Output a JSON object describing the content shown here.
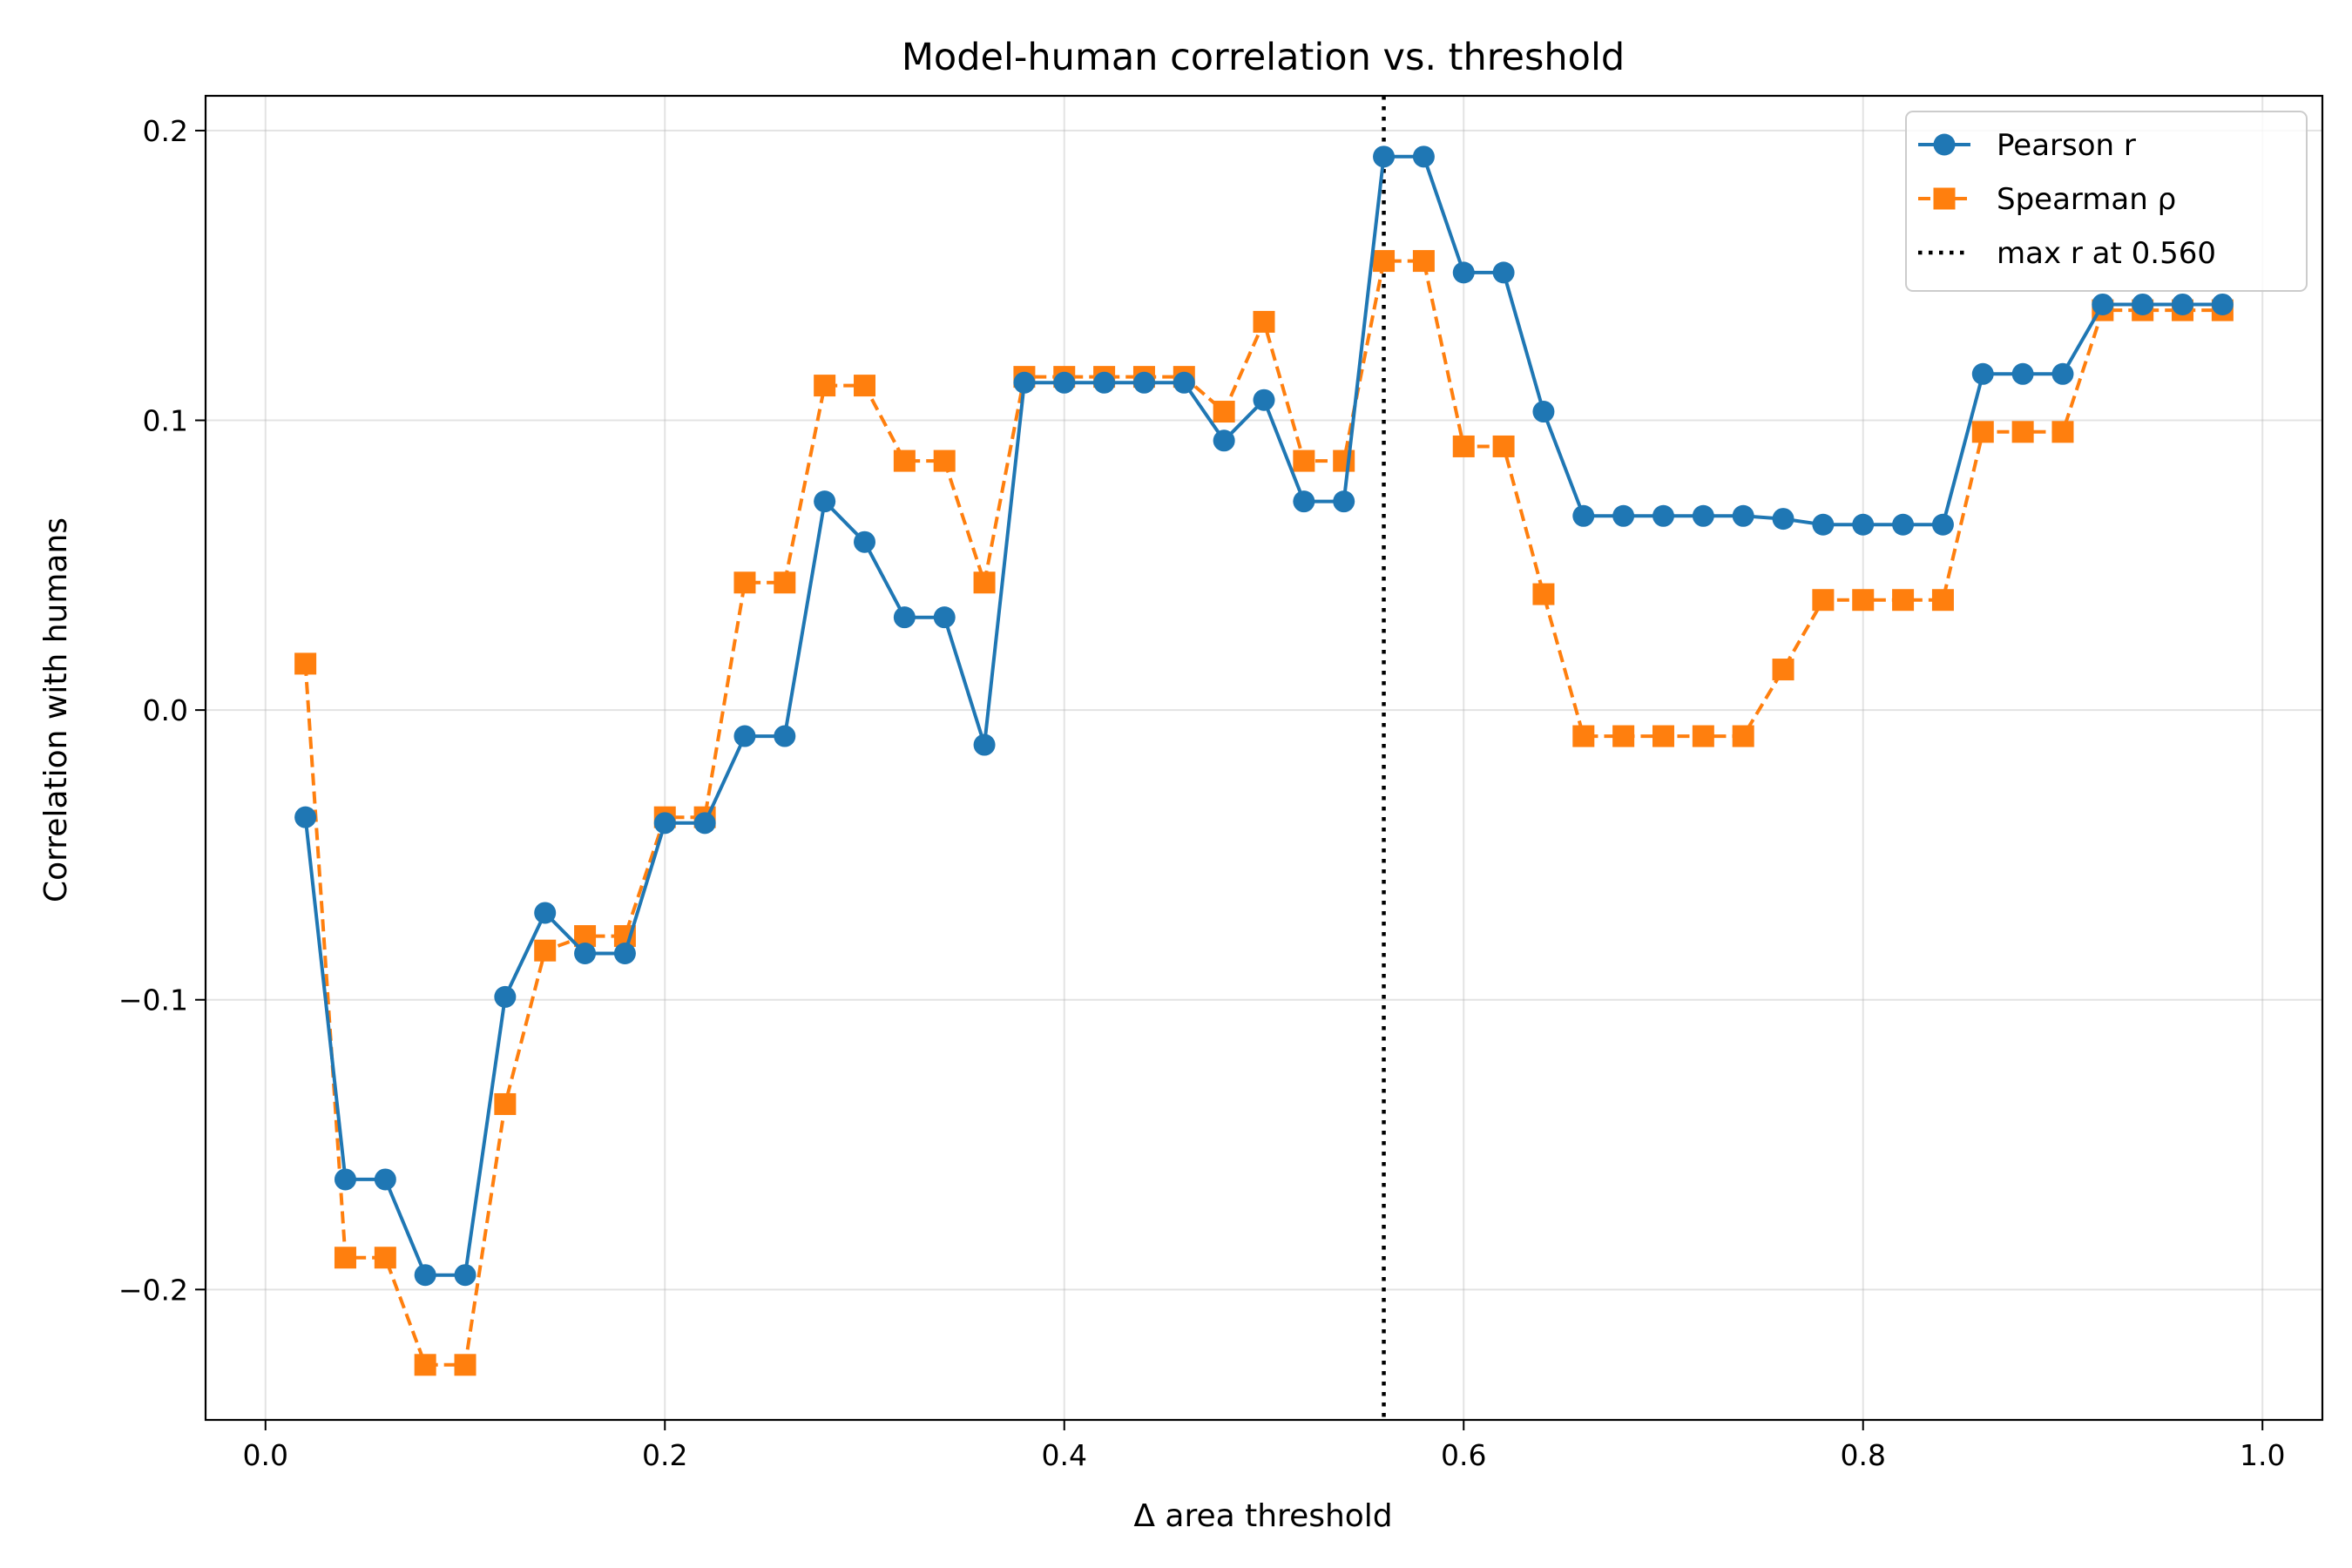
{
  "chart_data": {
    "type": "line",
    "title": "Model-human correlation vs. threshold",
    "xlabel": "Δ area threshold",
    "ylabel": "Correlation with humans",
    "xlim": [
      -0.03,
      1.03
    ],
    "ylim": [
      -0.245,
      0.212
    ],
    "xticks": [
      0.0,
      0.2,
      0.4,
      0.6,
      0.8,
      1.0
    ],
    "xtick_labels": [
      "0.0",
      "0.2",
      "0.4",
      "0.6",
      "0.8",
      "1.0"
    ],
    "yticks": [
      -0.2,
      -0.1,
      0.0,
      0.1,
      0.2
    ],
    "ytick_labels": [
      "−0.2",
      "−0.1",
      "0.0",
      "0.1",
      "0.2"
    ],
    "grid": true,
    "legend_position": "top-right",
    "x": [
      0.02,
      0.04,
      0.06,
      0.08,
      0.1,
      0.12,
      0.14,
      0.16,
      0.18,
      0.2,
      0.22,
      0.24,
      0.26,
      0.28,
      0.3,
      0.32,
      0.34,
      0.36,
      0.38,
      0.4,
      0.42,
      0.44,
      0.46,
      0.48,
      0.5,
      0.52,
      0.54,
      0.56,
      0.58,
      0.6,
      0.62,
      0.64,
      0.66,
      0.68,
      0.7,
      0.72,
      0.74,
      0.76,
      0.78,
      0.8,
      0.82,
      0.84,
      0.86,
      0.88,
      0.9,
      0.92,
      0.94,
      0.96,
      0.98
    ],
    "series": [
      {
        "name": "Pearson r",
        "color": "#1f77b4",
        "marker": "circle",
        "linestyle": "solid",
        "values": [
          -0.037,
          -0.162,
          -0.162,
          -0.195,
          -0.195,
          -0.099,
          -0.07,
          -0.084,
          -0.084,
          -0.039,
          -0.039,
          -0.009,
          -0.009,
          0.072,
          0.058,
          0.032,
          0.032,
          -0.012,
          0.113,
          0.113,
          0.113,
          0.113,
          0.113,
          0.093,
          0.107,
          0.072,
          0.072,
          0.191,
          0.191,
          0.151,
          0.151,
          0.103,
          0.067,
          0.067,
          0.067,
          0.067,
          0.067,
          0.066,
          0.064,
          0.064,
          0.064,
          0.064,
          0.116,
          0.116,
          0.116,
          0.14,
          0.14,
          0.14,
          0.14
        ]
      },
      {
        "name": "Spearman ρ",
        "color": "#ff7f0e",
        "marker": "square",
        "linestyle": "dashed",
        "values": [
          0.016,
          -0.189,
          -0.189,
          -0.226,
          -0.226,
          -0.136,
          -0.083,
          -0.078,
          -0.078,
          -0.037,
          -0.037,
          0.044,
          0.044,
          0.112,
          0.112,
          0.086,
          0.086,
          0.044,
          0.115,
          0.115,
          0.115,
          0.115,
          0.115,
          0.103,
          0.134,
          0.086,
          0.086,
          0.155,
          0.155,
          0.091,
          0.091,
          0.04,
          -0.009,
          -0.009,
          -0.009,
          -0.009,
          -0.009,
          0.014,
          0.038,
          0.038,
          0.038,
          0.038,
          0.096,
          0.096,
          0.096,
          0.138,
          0.138,
          0.138,
          0.138
        ]
      }
    ],
    "reference_line": {
      "orientation": "vertical",
      "x": 0.56,
      "label": "max r at 0.560",
      "color": "#000000",
      "linestyle": "dotted"
    }
  }
}
